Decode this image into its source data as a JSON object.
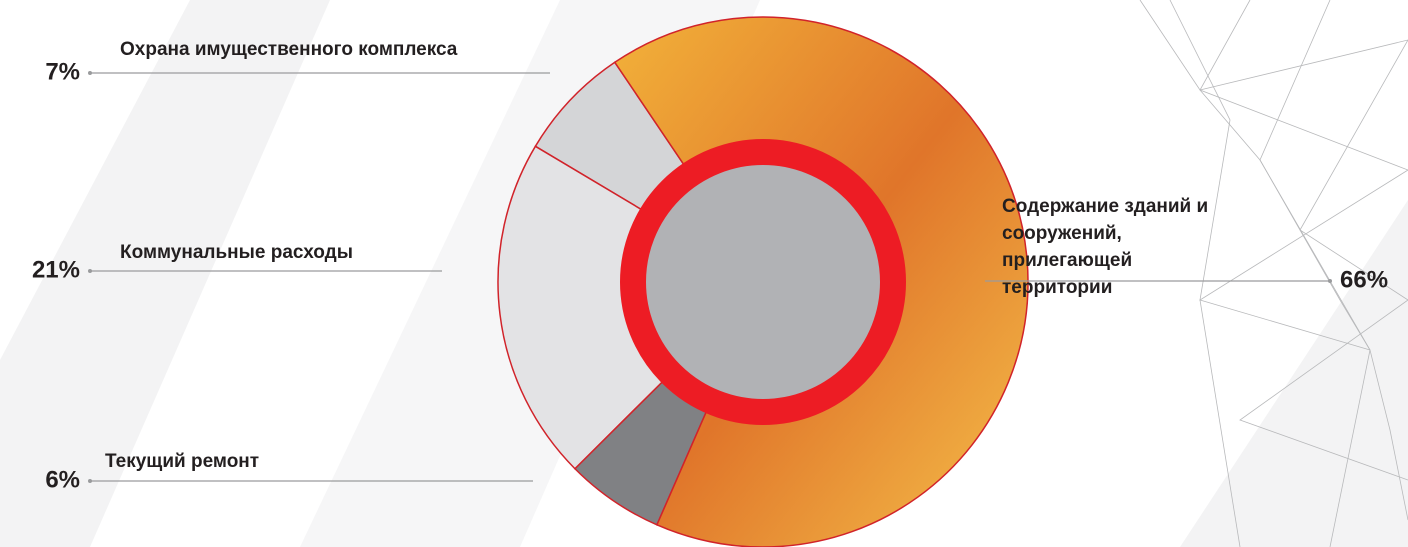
{
  "chart_data": {
    "type": "pie",
    "categories": [
      "Охрана имущественного комплекса",
      "Коммунальные расходы",
      "Текущий ремонт",
      "Содержание зданий и сооружений, прилегающей территории"
    ],
    "values": [
      7,
      21,
      6,
      66
    ],
    "value_labels": [
      "7%",
      "21%",
      "6%",
      "66%"
    ],
    "colors": [
      "#d4d5d7",
      "#e3e3e5",
      "#808184",
      "#eb9a2c"
    ]
  }
}
